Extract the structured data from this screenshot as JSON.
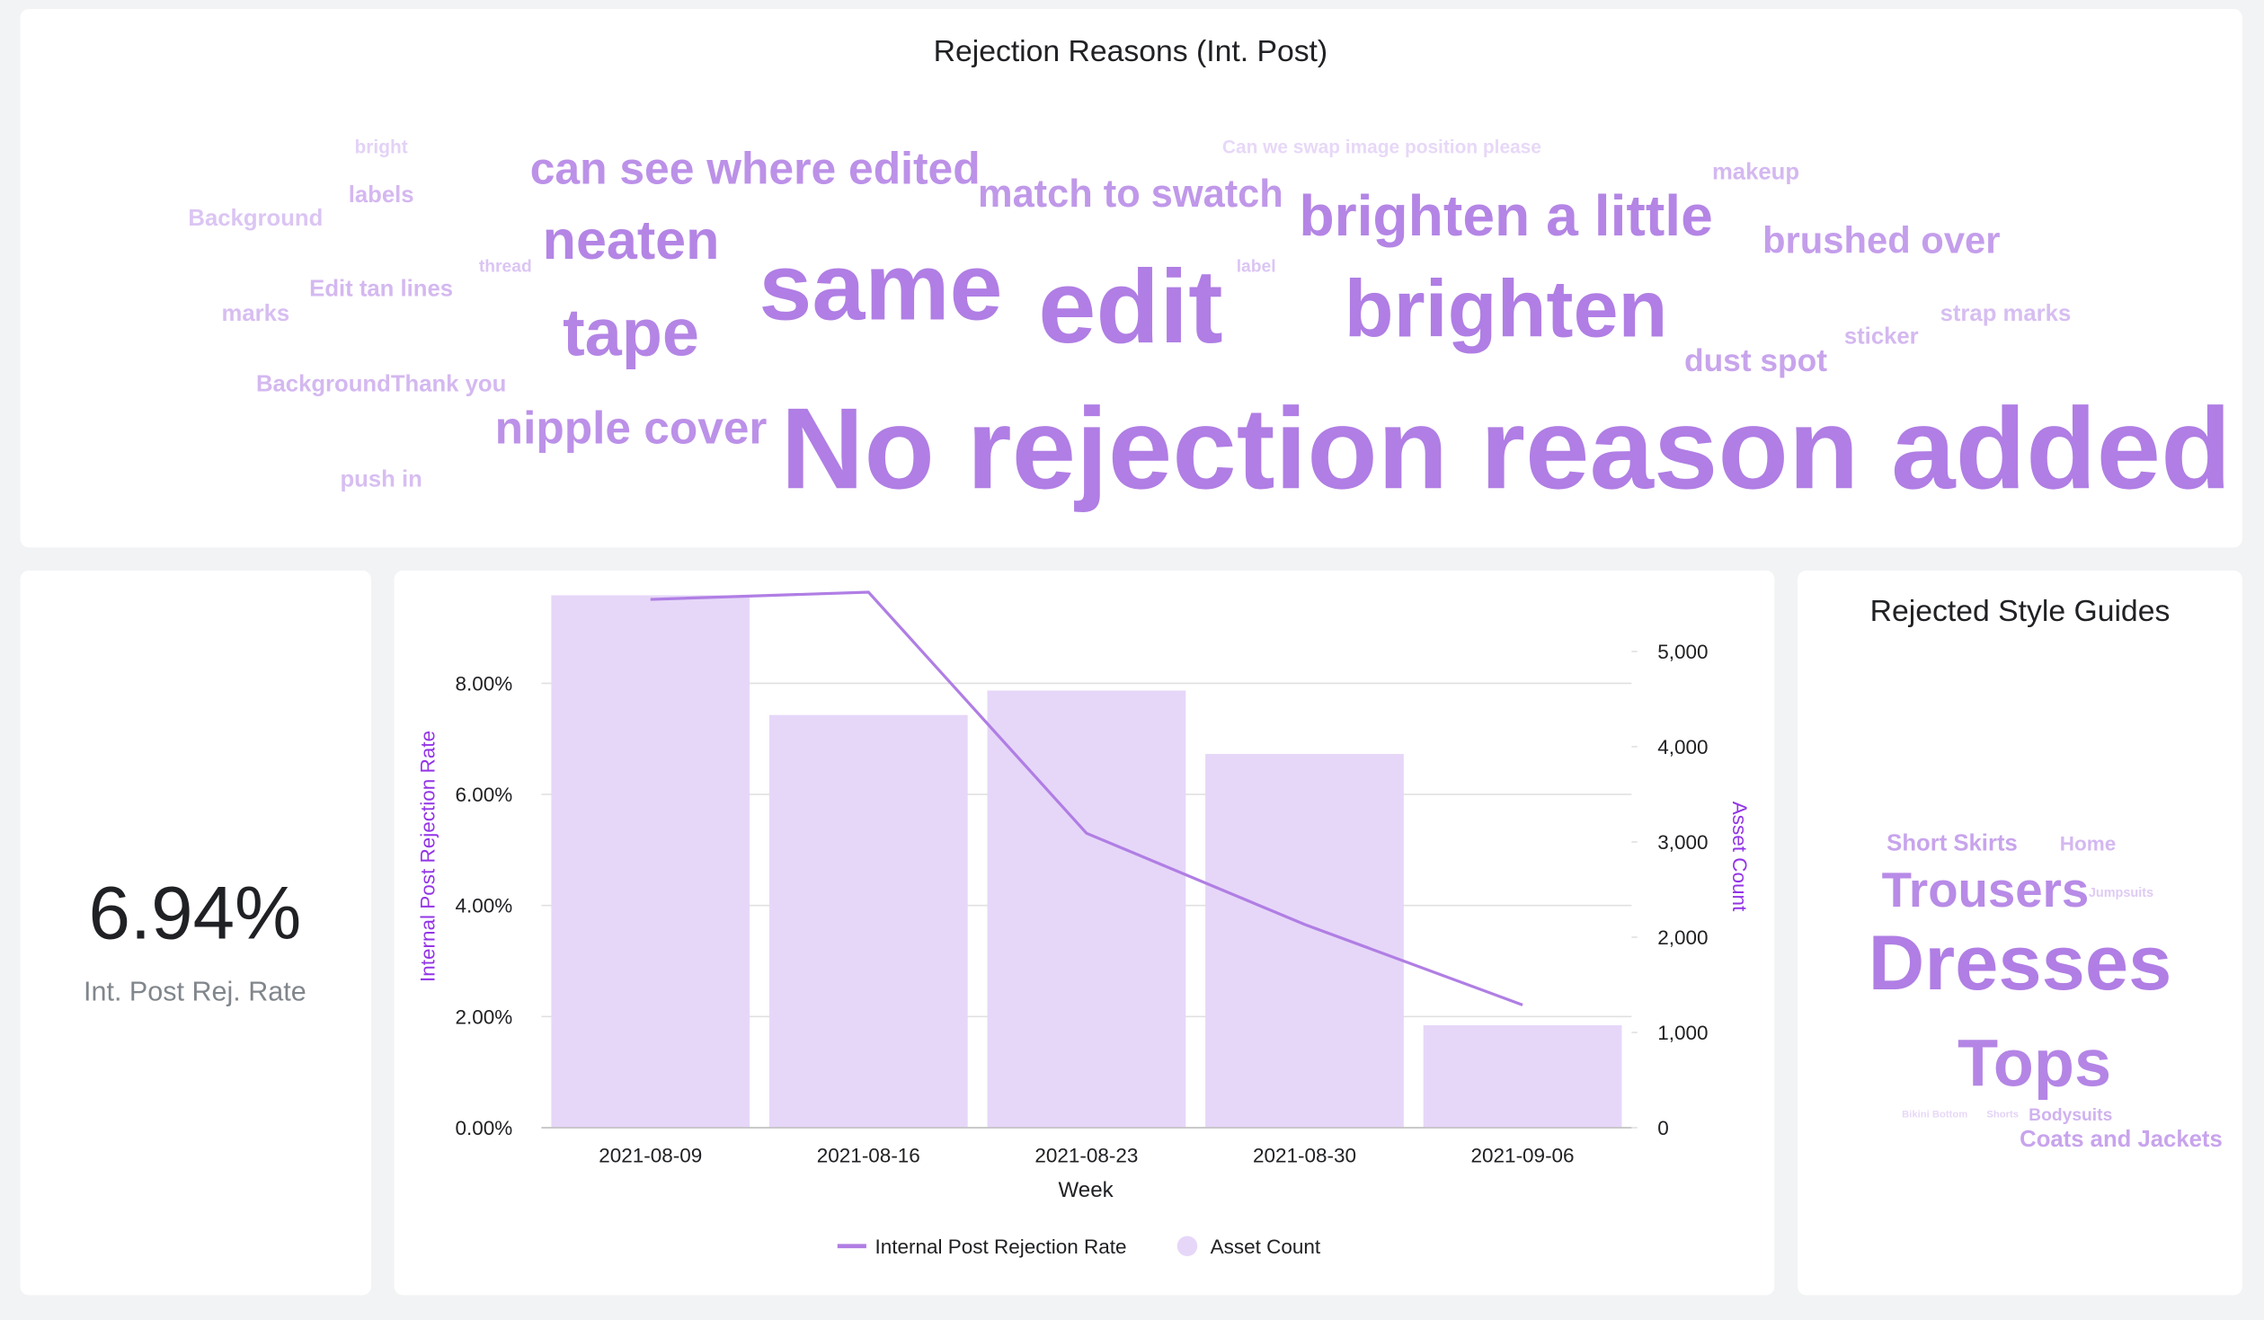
{
  "word_cloud": {
    "title": "Rejection Reasons (Int. Post)",
    "words": [
      "No rejection reason added",
      "edit",
      "same",
      "brighten",
      "brighten a little",
      "neaten",
      "tape",
      "can see where edited",
      "match to swatch",
      "brushed over",
      "nipple cover",
      "dust spot",
      "makeup",
      "Can we swap image position please",
      "bright",
      "labels",
      "Background",
      "thread",
      "label",
      "Edit tan lines",
      "marks",
      "sticker",
      "strap marks",
      "BackgroundThank you",
      "push in"
    ]
  },
  "scorecard": {
    "value": "6.94%",
    "label": "Int. Post Rej. Rate"
  },
  "style_cloud": {
    "title": "Rejected Style Guides",
    "words": [
      "Short Skirts",
      "Home",
      "Trousers",
      "Jumpsuits",
      "Dresses",
      "Tops",
      "Bikini Bottom",
      "Shorts",
      "Bodysuits",
      "Coats and Jackets"
    ]
  },
  "chart_data": {
    "type": "combo",
    "x_label": "Week",
    "y_label": "Internal Post Rejection Rate",
    "y2_label": "Asset Count",
    "categories": [
      "2021-08-09",
      "2021-08-16",
      "2021-08-23",
      "2021-08-30",
      "2021-09-06"
    ],
    "series": [
      {
        "name": "Internal Post Rejection Rate",
        "type": "line",
        "color": "#b07ee4",
        "values": [
          9.51,
          9.64,
          5.3,
          3.66,
          2.21
        ]
      },
      {
        "name": "Asset Count",
        "type": "bar",
        "axis": "y2",
        "color": "#e6d7f8",
        "values": [
          5590,
          4333,
          4590,
          3924,
          1076
        ]
      }
    ],
    "ylim": [
      0,
      10.03
    ],
    "yticks": [
      {
        "value": 0,
        "label": "0.00%"
      },
      {
        "value": 2,
        "label": "2.00%"
      },
      {
        "value": 4,
        "label": "4.00%"
      },
      {
        "value": 6,
        "label": "6.00%"
      },
      {
        "value": 8,
        "label": "8.00%"
      }
    ],
    "y2lim": [
      0,
      5850
    ],
    "y2ticks": [
      0,
      {
        "value": 1000,
        "label": "1,000"
      },
      {
        "value": 2000,
        "label": "2,000"
      },
      {
        "value": 3000,
        "label": "3,000"
      },
      {
        "value": 4000,
        "label": "4,000"
      },
      {
        "value": 5000,
        "label": "5,000"
      }
    ],
    "grid": true,
    "legend": "bottom"
  }
}
